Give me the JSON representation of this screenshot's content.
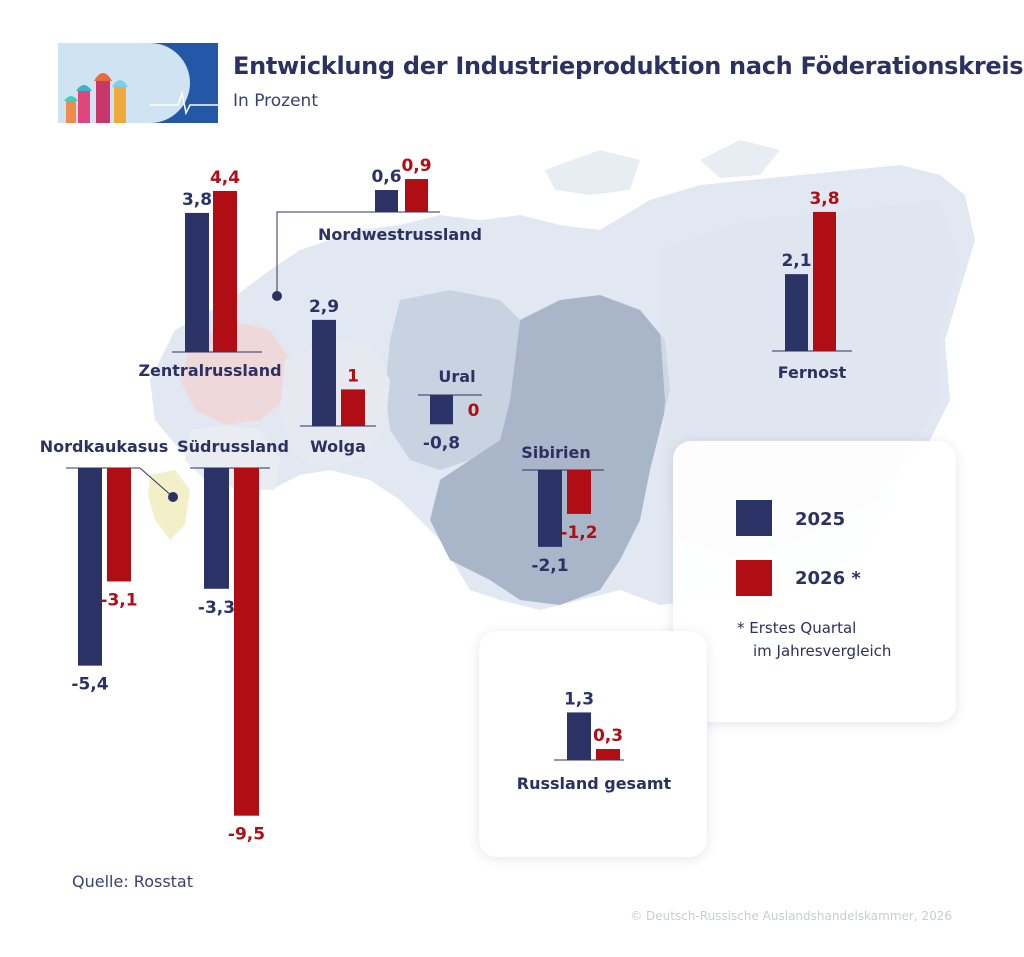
{
  "header": {
    "title": "Entwicklung der Industrieproduktion nach Föderationskreisen",
    "subtitle": "In Prozent"
  },
  "footer": {
    "source": "Quelle: Rosstat",
    "copyright": "© Deutsch-Russische Auslandshandelskammer, 2026"
  },
  "legend": {
    "items": [
      {
        "label": "2025",
        "color": "#2b3266"
      },
      {
        "label": "2026 *",
        "color": "#b00d14"
      }
    ],
    "note_line1": "* Erstes Quartal",
    "note_line2": "im Jahresvergleich"
  },
  "colors": {
    "series_2025": "#2b3266",
    "series_2026": "#b00d14",
    "text": "#2b3160",
    "map_light": "#dde4ee",
    "map_dark": "#a9b6c9"
  },
  "chart_data": {
    "type": "bar",
    "unit": "In Prozent",
    "series": [
      {
        "name": "2025"
      },
      {
        "name": "2026 *"
      }
    ],
    "regions": [
      {
        "name": "Zentralrussland",
        "values": [
          3.8,
          4.4
        ],
        "labels": [
          "3,8",
          "4,4"
        ]
      },
      {
        "name": "Nordwestrussland",
        "values": [
          0.6,
          0.9
        ],
        "labels": [
          "0,6",
          "0,9"
        ]
      },
      {
        "name": "Wolga",
        "values": [
          2.9,
          1.0
        ],
        "labels": [
          "2,9",
          "1"
        ]
      },
      {
        "name": "Ural",
        "values": [
          -0.8,
          0.0
        ],
        "labels": [
          "-0,8",
          "0"
        ]
      },
      {
        "name": "Sibirien",
        "values": [
          -2.1,
          -1.2
        ],
        "labels": [
          "-2,1",
          "-1,2"
        ]
      },
      {
        "name": "Fernost",
        "values": [
          2.1,
          3.8
        ],
        "labels": [
          "2,1",
          "3,8"
        ]
      },
      {
        "name": "Nordkaukasus",
        "values": [
          -5.4,
          -3.1
        ],
        "labels": [
          "-5,4",
          "-3,1"
        ]
      },
      {
        "name": "Südrussland",
        "values": [
          -3.3,
          -9.5
        ],
        "labels": [
          "-3,3",
          "-9,5"
        ]
      },
      {
        "name": "Russland gesamt",
        "values": [
          1.3,
          0.3
        ],
        "labels": [
          "1,3",
          "0,3"
        ]
      }
    ]
  }
}
